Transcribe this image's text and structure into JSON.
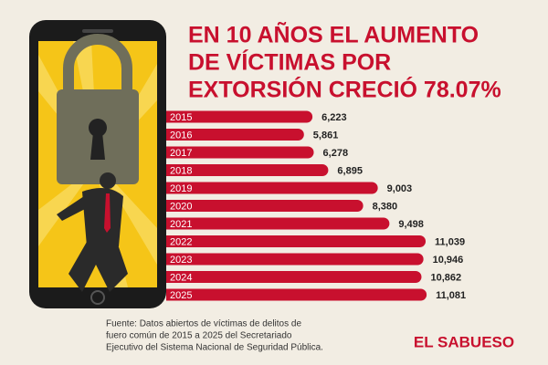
{
  "chart_data": {
    "type": "bar",
    "title": [
      "EN 10 AÑOS EL AUMENTO",
      "DE VÍCTIMAS POR",
      "EXTORSIÓN CRECIÓ 78.07%"
    ],
    "categories": [
      "2015",
      "2016",
      "2017",
      "2018",
      "2019",
      "2020",
      "2021",
      "2022",
      "2023",
      "2024",
      "2025"
    ],
    "values": [
      6223,
      5861,
      6278,
      6895,
      9003,
      8380,
      9498,
      11039,
      10946,
      10862,
      11081
    ],
    "value_labels": [
      "6,223",
      "5,861",
      "6,278",
      "6,895",
      "9,003",
      "8,380",
      "9,498",
      "11,039",
      "10,946",
      "10,862",
      "11,081"
    ],
    "color": "#c8102e",
    "source": [
      "Fuente: Datos abiertos de víctimas de delitos de",
      "fuero común de 2015 a 2025 del Secretariado",
      "Ejecutivo del Sistema Nacional de Seguridad Pública."
    ],
    "brand": "EL SABUESO"
  }
}
